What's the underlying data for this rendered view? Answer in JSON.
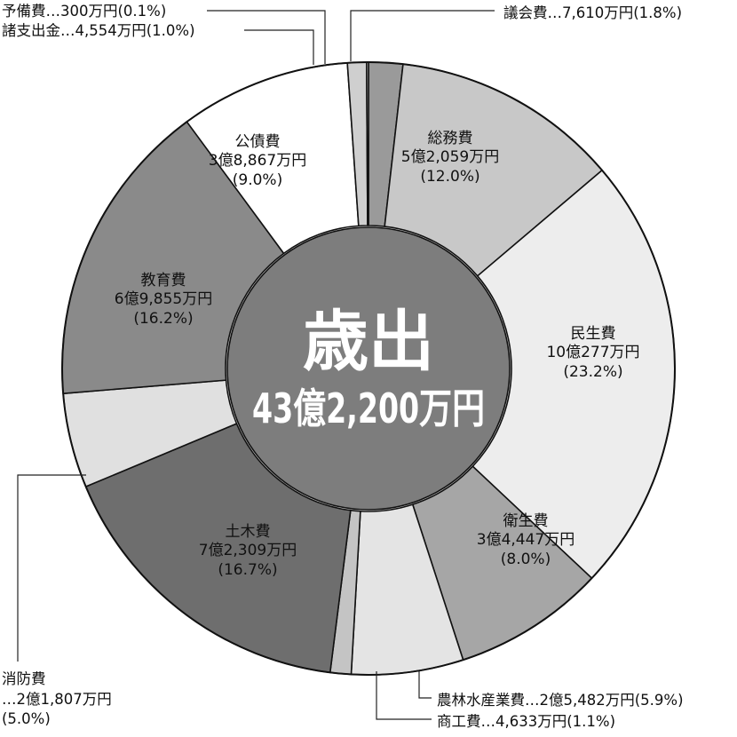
{
  "chart_data": {
    "type": "pie",
    "subtype": "donut",
    "title": "",
    "center_title": "歳出",
    "center_total": "43億2,200万円",
    "slices": [
      {
        "name": "議会費",
        "amount": "7,610万円",
        "percent_label": "(1.8%)",
        "value": 1.8,
        "color": "#9a9a9a",
        "label_style": "external",
        "external_text": "議会費…7,610万円(1.8%)"
      },
      {
        "name": "総務費",
        "amount": "5億2,059万円",
        "percent_label": "(12.0%)",
        "value": 12.0,
        "color": "#c8c8c8",
        "label_style": "inside"
      },
      {
        "name": "民生費",
        "amount": "10億277万円",
        "percent_label": "(23.2%)",
        "value": 23.2,
        "color": "#ededed",
        "label_style": "inside"
      },
      {
        "name": "衛生費",
        "amount": "3億4,447万円",
        "percent_label": "(8.0%)",
        "value": 8.0,
        "color": "#a6a6a6",
        "label_style": "inside"
      },
      {
        "name": "農林水産業費",
        "amount": "2億5,482万円",
        "percent_label": "(5.9%)",
        "value": 5.9,
        "color": "#e4e4e4",
        "label_style": "external",
        "external_text": "農林水産業費…2億5,482万円(5.9%)"
      },
      {
        "name": "商工費",
        "amount": "4,633万円",
        "percent_label": "(1.1%)",
        "value": 1.1,
        "color": "#c4c4c4",
        "label_style": "external",
        "external_text": "商工費…4,633万円(1.1%)"
      },
      {
        "name": "土木費",
        "amount": "7億2,309万円",
        "percent_label": "(16.7%)",
        "value": 16.7,
        "color": "#6e6e6e",
        "label_style": "inside"
      },
      {
        "name": "消防費",
        "amount": "2億1,807万円",
        "percent_label": "(5.0%)",
        "value": 5.0,
        "color": "#e0e0e0",
        "label_style": "external",
        "external_lines": [
          "消防費",
          "…2億1,807万円",
          "(5.0%)"
        ]
      },
      {
        "name": "教育費",
        "amount": "6億9,855万円",
        "percent_label": "(16.2%)",
        "value": 16.2,
        "color": "#8a8a8a",
        "label_style": "inside"
      },
      {
        "name": "公債費",
        "amount": "3億8,867万円",
        "percent_label": "(9.0%)",
        "value": 9.0,
        "color": "#ffffff",
        "label_style": "inside"
      },
      {
        "name": "諸支出金",
        "amount": "4,554万円",
        "percent_label": "(1.0%)",
        "value": 1.0,
        "color": "#cfcfcf",
        "label_style": "external",
        "external_text": "諸支出金…4,554万円(1.0%)"
      },
      {
        "name": "予備費",
        "amount": "300万円",
        "percent_label": "(0.1%)",
        "value": 0.1,
        "color": "#f2f2f2",
        "label_style": "external",
        "external_text": "予備費…300万円(0.1%)"
      }
    ],
    "hole_color": "#7d7d7d",
    "legend": "none"
  }
}
